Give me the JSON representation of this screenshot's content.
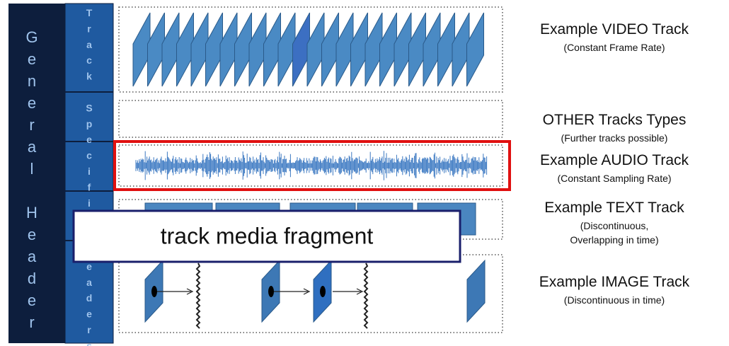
{
  "general_header": "General Header",
  "track_headers": "Track Specific Headers",
  "tracks": [
    {
      "title": "Example VIDEO Track",
      "subtitle": [
        "(Constant Frame Rate)"
      ]
    },
    {
      "title": "OTHER Tracks Types",
      "subtitle": [
        "(Further tracks possible)"
      ]
    },
    {
      "title": "Example AUDIO Track",
      "subtitle": [
        "(Constant Sampling Rate)"
      ]
    },
    {
      "title": "Example TEXT Track",
      "subtitle": [
        "(Discontinuous,",
        "Overlapping in time)"
      ]
    },
    {
      "title": "Example IMAGE Track",
      "subtitle": [
        "(Discontinuous in time)"
      ]
    }
  ],
  "overlay": "track media fragment"
}
